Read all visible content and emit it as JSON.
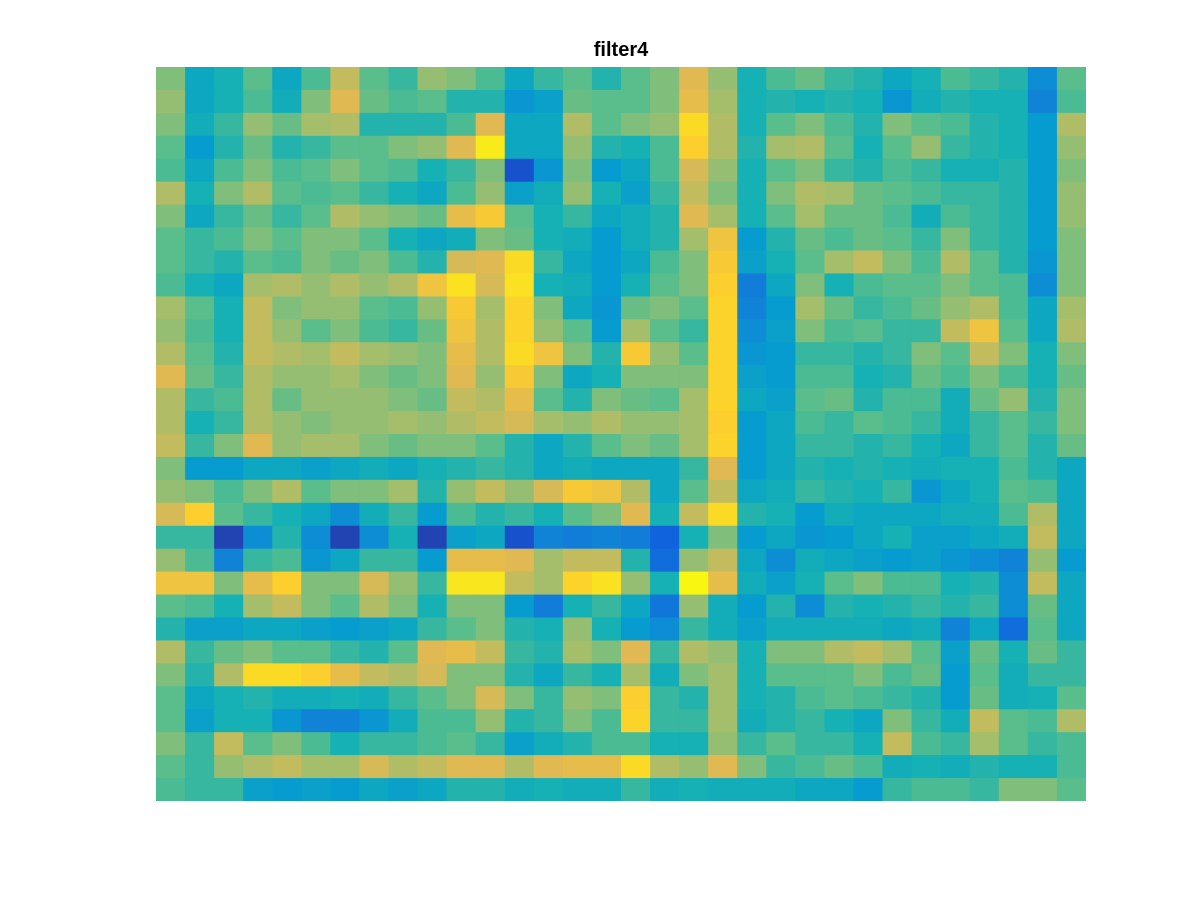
{
  "chart_data": {
    "type": "heatmap",
    "title": "filter4",
    "xlabel": "",
    "ylabel": "",
    "rows": 32,
    "cols": 32,
    "axes_visible": false,
    "colorbar": false,
    "colormap": "parula",
    "value_range": [
      0,
      1
    ],
    "values": [
      [
        0.55,
        0.35,
        0.4,
        0.5,
        0.35,
        0.48,
        0.65,
        0.5,
        0.45,
        0.58,
        0.55,
        0.48,
        0.35,
        0.45,
        0.5,
        0.42,
        0.5,
        0.55,
        0.7,
        0.58,
        0.4,
        0.48,
        0.52,
        0.45,
        0.42,
        0.35,
        0.4,
        0.48,
        0.45,
        0.42,
        0.25,
        0.5
      ],
      [
        0.58,
        0.35,
        0.4,
        0.48,
        0.38,
        0.55,
        0.7,
        0.52,
        0.48,
        0.5,
        0.42,
        0.42,
        0.28,
        0.32,
        0.52,
        0.5,
        0.5,
        0.55,
        0.72,
        0.6,
        0.4,
        0.42,
        0.4,
        0.42,
        0.4,
        0.28,
        0.38,
        0.42,
        0.4,
        0.4,
        0.22,
        0.48
      ],
      [
        0.55,
        0.38,
        0.45,
        0.58,
        0.52,
        0.6,
        0.62,
        0.42,
        0.42,
        0.42,
        0.48,
        0.7,
        0.35,
        0.35,
        0.62,
        0.5,
        0.55,
        0.58,
        0.85,
        0.62,
        0.4,
        0.5,
        0.55,
        0.48,
        0.42,
        0.55,
        0.5,
        0.48,
        0.42,
        0.4,
        0.3,
        0.62
      ],
      [
        0.5,
        0.3,
        0.42,
        0.52,
        0.42,
        0.45,
        0.5,
        0.5,
        0.55,
        0.58,
        0.7,
        0.92,
        0.35,
        0.35,
        0.58,
        0.42,
        0.4,
        0.48,
        0.8,
        0.62,
        0.42,
        0.6,
        0.62,
        0.5,
        0.4,
        0.5,
        0.58,
        0.45,
        0.42,
        0.4,
        0.3,
        0.58
      ],
      [
        0.48,
        0.35,
        0.48,
        0.55,
        0.48,
        0.5,
        0.55,
        0.5,
        0.48,
        0.4,
        0.45,
        0.55,
        0.08,
        0.28,
        0.55,
        0.3,
        0.35,
        0.48,
        0.68,
        0.58,
        0.4,
        0.5,
        0.55,
        0.45,
        0.42,
        0.48,
        0.45,
        0.4,
        0.4,
        0.42,
        0.3,
        0.55
      ],
      [
        0.62,
        0.4,
        0.55,
        0.62,
        0.5,
        0.48,
        0.5,
        0.45,
        0.4,
        0.35,
        0.48,
        0.58,
        0.32,
        0.38,
        0.58,
        0.4,
        0.32,
        0.45,
        0.65,
        0.55,
        0.4,
        0.55,
        0.62,
        0.6,
        0.52,
        0.5,
        0.48,
        0.45,
        0.45,
        0.42,
        0.3,
        0.58
      ],
      [
        0.55,
        0.35,
        0.45,
        0.52,
        0.45,
        0.5,
        0.62,
        0.58,
        0.55,
        0.52,
        0.72,
        0.78,
        0.5,
        0.4,
        0.45,
        0.35,
        0.38,
        0.42,
        0.7,
        0.6,
        0.4,
        0.5,
        0.6,
        0.52,
        0.52,
        0.48,
        0.38,
        0.48,
        0.45,
        0.42,
        0.3,
        0.58
      ],
      [
        0.5,
        0.45,
        0.48,
        0.55,
        0.5,
        0.55,
        0.55,
        0.5,
        0.4,
        0.35,
        0.38,
        0.55,
        0.52,
        0.4,
        0.38,
        0.3,
        0.38,
        0.42,
        0.6,
        0.75,
        0.3,
        0.42,
        0.52,
        0.48,
        0.52,
        0.5,
        0.45,
        0.55,
        0.45,
        0.42,
        0.3,
        0.55
      ],
      [
        0.5,
        0.45,
        0.42,
        0.5,
        0.48,
        0.55,
        0.52,
        0.55,
        0.48,
        0.42,
        0.68,
        0.7,
        0.85,
        0.45,
        0.35,
        0.3,
        0.35,
        0.48,
        0.55,
        0.78,
        0.32,
        0.4,
        0.5,
        0.6,
        0.65,
        0.55,
        0.48,
        0.62,
        0.5,
        0.42,
        0.28,
        0.55
      ],
      [
        0.48,
        0.4,
        0.35,
        0.6,
        0.62,
        0.58,
        0.62,
        0.58,
        0.62,
        0.75,
        0.88,
        0.68,
        0.88,
        0.4,
        0.38,
        0.3,
        0.4,
        0.5,
        0.55,
        0.8,
        0.2,
        0.35,
        0.55,
        0.4,
        0.48,
        0.5,
        0.5,
        0.55,
        0.5,
        0.48,
        0.25,
        0.55
      ],
      [
        0.6,
        0.5,
        0.4,
        0.65,
        0.55,
        0.58,
        0.58,
        0.5,
        0.48,
        0.58,
        0.78,
        0.6,
        0.82,
        0.55,
        0.35,
        0.28,
        0.52,
        0.55,
        0.5,
        0.82,
        0.22,
        0.3,
        0.6,
        0.52,
        0.45,
        0.48,
        0.52,
        0.58,
        0.62,
        0.48,
        0.35,
        0.6
      ],
      [
        0.58,
        0.48,
        0.4,
        0.65,
        0.58,
        0.5,
        0.55,
        0.48,
        0.45,
        0.52,
        0.75,
        0.62,
        0.82,
        0.58,
        0.5,
        0.3,
        0.6,
        0.5,
        0.45,
        0.82,
        0.25,
        0.32,
        0.55,
        0.48,
        0.5,
        0.45,
        0.45,
        0.65,
        0.75,
        0.5,
        0.35,
        0.62
      ],
      [
        0.62,
        0.5,
        0.42,
        0.65,
        0.62,
        0.6,
        0.65,
        0.6,
        0.58,
        0.55,
        0.72,
        0.62,
        0.85,
        0.75,
        0.55,
        0.42,
        0.78,
        0.58,
        0.5,
        0.82,
        0.28,
        0.3,
        0.45,
        0.45,
        0.42,
        0.45,
        0.55,
        0.5,
        0.65,
        0.55,
        0.4,
        0.55
      ],
      [
        0.7,
        0.52,
        0.45,
        0.62,
        0.58,
        0.58,
        0.6,
        0.55,
        0.52,
        0.55,
        0.7,
        0.58,
        0.78,
        0.55,
        0.35,
        0.4,
        0.55,
        0.55,
        0.55,
        0.82,
        0.32,
        0.3,
        0.48,
        0.48,
        0.4,
        0.42,
        0.52,
        0.48,
        0.55,
        0.48,
        0.4,
        0.52
      ],
      [
        0.62,
        0.45,
        0.48,
        0.62,
        0.52,
        0.58,
        0.58,
        0.58,
        0.55,
        0.52,
        0.65,
        0.62,
        0.72,
        0.5,
        0.42,
        0.55,
        0.52,
        0.5,
        0.6,
        0.82,
        0.35,
        0.32,
        0.5,
        0.52,
        0.42,
        0.48,
        0.48,
        0.38,
        0.52,
        0.58,
        0.42,
        0.55
      ],
      [
        0.62,
        0.4,
        0.45,
        0.62,
        0.58,
        0.55,
        0.58,
        0.58,
        0.6,
        0.58,
        0.62,
        0.65,
        0.68,
        0.6,
        0.58,
        0.62,
        0.58,
        0.58,
        0.6,
        0.8,
        0.3,
        0.35,
        0.48,
        0.45,
        0.5,
        0.48,
        0.45,
        0.38,
        0.45,
        0.5,
        0.45,
        0.55
      ],
      [
        0.65,
        0.45,
        0.55,
        0.7,
        0.58,
        0.6,
        0.6,
        0.55,
        0.52,
        0.55,
        0.55,
        0.5,
        0.42,
        0.35,
        0.42,
        0.5,
        0.55,
        0.52,
        0.6,
        0.82,
        0.3,
        0.35,
        0.45,
        0.45,
        0.42,
        0.45,
        0.4,
        0.35,
        0.45,
        0.5,
        0.42,
        0.52
      ],
      [
        0.55,
        0.3,
        0.3,
        0.35,
        0.35,
        0.32,
        0.35,
        0.38,
        0.35,
        0.4,
        0.42,
        0.45,
        0.42,
        0.35,
        0.38,
        0.35,
        0.35,
        0.35,
        0.45,
        0.7,
        0.3,
        0.35,
        0.42,
        0.4,
        0.42,
        0.4,
        0.38,
        0.4,
        0.4,
        0.48,
        0.42,
        0.35
      ],
      [
        0.58,
        0.55,
        0.48,
        0.55,
        0.62,
        0.5,
        0.55,
        0.55,
        0.6,
        0.42,
        0.58,
        0.65,
        0.58,
        0.68,
        0.78,
        0.75,
        0.62,
        0.35,
        0.5,
        0.65,
        0.35,
        0.38,
        0.45,
        0.42,
        0.4,
        0.45,
        0.28,
        0.35,
        0.4,
        0.5,
        0.48,
        0.35
      ],
      [
        0.68,
        0.8,
        0.5,
        0.45,
        0.4,
        0.35,
        0.25,
        0.38,
        0.45,
        0.3,
        0.48,
        0.42,
        0.45,
        0.4,
        0.5,
        0.55,
        0.7,
        0.4,
        0.65,
        0.85,
        0.42,
        0.4,
        0.3,
        0.38,
        0.35,
        0.35,
        0.35,
        0.38,
        0.38,
        0.48,
        0.62,
        0.35
      ],
      [
        0.45,
        0.45,
        0.05,
        0.25,
        0.42,
        0.25,
        0.05,
        0.25,
        0.4,
        0.05,
        0.32,
        0.35,
        0.08,
        0.22,
        0.2,
        0.22,
        0.2,
        0.12,
        0.4,
        0.55,
        0.3,
        0.35,
        0.28,
        0.3,
        0.35,
        0.4,
        0.32,
        0.32,
        0.35,
        0.38,
        0.65,
        0.35
      ],
      [
        0.58,
        0.48,
        0.22,
        0.45,
        0.48,
        0.28,
        0.35,
        0.45,
        0.45,
        0.3,
        0.72,
        0.72,
        0.7,
        0.6,
        0.65,
        0.65,
        0.42,
        0.15,
        0.58,
        0.65,
        0.35,
        0.25,
        0.38,
        0.35,
        0.32,
        0.3,
        0.32,
        0.28,
        0.25,
        0.22,
        0.58,
        0.3
      ],
      [
        0.75,
        0.75,
        0.55,
        0.72,
        0.8,
        0.55,
        0.55,
        0.68,
        0.58,
        0.45,
        0.9,
        0.9,
        0.65,
        0.6,
        0.82,
        0.88,
        0.58,
        0.4,
        0.98,
        0.72,
        0.38,
        0.32,
        0.4,
        0.5,
        0.55,
        0.48,
        0.48,
        0.4,
        0.42,
        0.25,
        0.65,
        0.35
      ],
      [
        0.5,
        0.48,
        0.4,
        0.6,
        0.65,
        0.55,
        0.5,
        0.62,
        0.55,
        0.4,
        0.55,
        0.55,
        0.3,
        0.2,
        0.4,
        0.45,
        0.35,
        0.18,
        0.58,
        0.38,
        0.3,
        0.42,
        0.25,
        0.42,
        0.4,
        0.42,
        0.45,
        0.42,
        0.45,
        0.25,
        0.52,
        0.35
      ],
      [
        0.42,
        0.32,
        0.32,
        0.35,
        0.35,
        0.32,
        0.3,
        0.32,
        0.35,
        0.45,
        0.5,
        0.55,
        0.42,
        0.4,
        0.58,
        0.4,
        0.3,
        0.25,
        0.45,
        0.38,
        0.32,
        0.38,
        0.38,
        0.38,
        0.38,
        0.35,
        0.38,
        0.22,
        0.35,
        0.15,
        0.5,
        0.35
      ],
      [
        0.62,
        0.45,
        0.52,
        0.55,
        0.5,
        0.5,
        0.45,
        0.42,
        0.5,
        0.7,
        0.72,
        0.65,
        0.45,
        0.42,
        0.6,
        0.55,
        0.7,
        0.45,
        0.62,
        0.58,
        0.4,
        0.55,
        0.55,
        0.62,
        0.65,
        0.6,
        0.5,
        0.32,
        0.52,
        0.4,
        0.52,
        0.45
      ],
      [
        0.55,
        0.42,
        0.62,
        0.85,
        0.85,
        0.8,
        0.72,
        0.65,
        0.62,
        0.68,
        0.55,
        0.55,
        0.42,
        0.35,
        0.45,
        0.4,
        0.6,
        0.38,
        0.55,
        0.6,
        0.4,
        0.5,
        0.5,
        0.5,
        0.55,
        0.48,
        0.52,
        0.3,
        0.5,
        0.38,
        0.45,
        0.45
      ],
      [
        0.5,
        0.35,
        0.4,
        0.42,
        0.38,
        0.38,
        0.4,
        0.38,
        0.45,
        0.5,
        0.55,
        0.68,
        0.55,
        0.45,
        0.58,
        0.55,
        0.8,
        0.45,
        0.42,
        0.6,
        0.4,
        0.42,
        0.48,
        0.5,
        0.48,
        0.45,
        0.42,
        0.3,
        0.52,
        0.38,
        0.4,
        0.5
      ],
      [
        0.5,
        0.32,
        0.4,
        0.4,
        0.28,
        0.22,
        0.22,
        0.28,
        0.38,
        0.48,
        0.48,
        0.58,
        0.42,
        0.45,
        0.55,
        0.48,
        0.82,
        0.45,
        0.45,
        0.6,
        0.38,
        0.42,
        0.45,
        0.4,
        0.35,
        0.55,
        0.45,
        0.38,
        0.65,
        0.5,
        0.48,
        0.62
      ],
      [
        0.55,
        0.45,
        0.65,
        0.5,
        0.55,
        0.48,
        0.4,
        0.45,
        0.45,
        0.48,
        0.5,
        0.45,
        0.32,
        0.38,
        0.42,
        0.48,
        0.48,
        0.4,
        0.4,
        0.58,
        0.45,
        0.5,
        0.45,
        0.45,
        0.4,
        0.65,
        0.48,
        0.45,
        0.6,
        0.5,
        0.45,
        0.48
      ],
      [
        0.5,
        0.45,
        0.58,
        0.62,
        0.65,
        0.6,
        0.6,
        0.68,
        0.62,
        0.65,
        0.7,
        0.7,
        0.62,
        0.7,
        0.72,
        0.72,
        0.85,
        0.62,
        0.58,
        0.7,
        0.55,
        0.45,
        0.48,
        0.52,
        0.48,
        0.38,
        0.4,
        0.38,
        0.42,
        0.4,
        0.4,
        0.48
      ],
      [
        0.48,
        0.45,
        0.45,
        0.32,
        0.3,
        0.32,
        0.3,
        0.35,
        0.32,
        0.35,
        0.42,
        0.42,
        0.38,
        0.4,
        0.38,
        0.38,
        0.45,
        0.38,
        0.4,
        0.38,
        0.38,
        0.38,
        0.35,
        0.35,
        0.3,
        0.45,
        0.48,
        0.48,
        0.45,
        0.55,
        0.55,
        0.5
      ]
    ]
  }
}
